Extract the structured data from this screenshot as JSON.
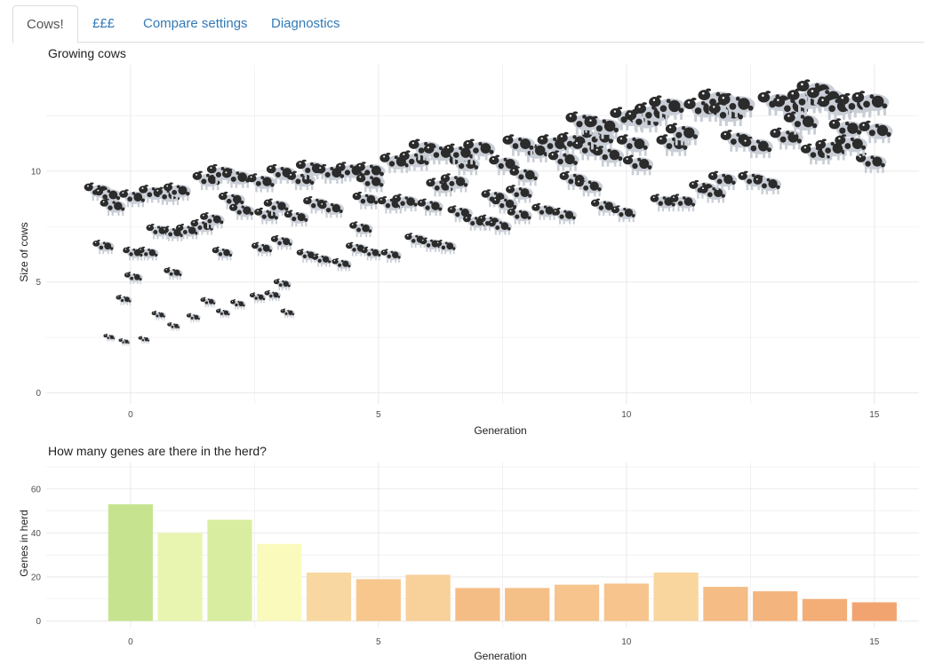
{
  "tabs": [
    {
      "label": "Cows!",
      "active": true
    },
    {
      "label": "£££",
      "active": false
    },
    {
      "label": "Compare settings",
      "active": false
    },
    {
      "label": "Diagnostics",
      "active": false
    }
  ],
  "colors": {
    "tab_link": "#337ab7",
    "grid": "#ebebeb",
    "cow_dark": "#2b2b2b",
    "cow_light": "#c9ced6"
  },
  "chart_data": [
    {
      "type": "scatter",
      "title": "Growing cows",
      "xlabel": "Generation",
      "ylabel": "Size of cows",
      "xlim": [
        -1.7,
        15.9
      ],
      "ylim": [
        -0.5,
        14.8
      ],
      "xticks": [
        0,
        5,
        10,
        15
      ],
      "yticks": [
        0,
        5,
        10
      ],
      "grid": true,
      "marker": "cow-icon",
      "points": [
        {
          "x": -0.6,
          "y": 9.1
        },
        {
          "x": -0.4,
          "y": 8.9
        },
        {
          "x": -0.3,
          "y": 8.4
        },
        {
          "x": 0.1,
          "y": 8.8
        },
        {
          "x": 0.5,
          "y": 9.0
        },
        {
          "x": 0.8,
          "y": 8.9
        },
        {
          "x": 1.0,
          "y": 9.1
        },
        {
          "x": -0.5,
          "y": 6.6
        },
        {
          "x": -0.4,
          "y": 2.5
        },
        {
          "x": -0.1,
          "y": 2.3
        },
        {
          "x": 0.3,
          "y": 2.4
        },
        {
          "x": -0.1,
          "y": 4.2
        },
        {
          "x": 0.1,
          "y": 5.2
        },
        {
          "x": 0.1,
          "y": 6.3
        },
        {
          "x": 0.4,
          "y": 6.3
        },
        {
          "x": 0.6,
          "y": 7.3
        },
        {
          "x": 0.9,
          "y": 7.2
        },
        {
          "x": 0.9,
          "y": 5.4
        },
        {
          "x": 0.6,
          "y": 3.5
        },
        {
          "x": 0.9,
          "y": 3.0
        },
        {
          "x": 1.3,
          "y": 3.4
        },
        {
          "x": 1.2,
          "y": 7.3
        },
        {
          "x": 1.5,
          "y": 7.5
        },
        {
          "x": 1.7,
          "y": 7.8
        },
        {
          "x": 1.6,
          "y": 9.6
        },
        {
          "x": 1.9,
          "y": 9.9
        },
        {
          "x": 2.2,
          "y": 9.7
        },
        {
          "x": 2.1,
          "y": 8.7
        },
        {
          "x": 2.3,
          "y": 8.2
        },
        {
          "x": 1.9,
          "y": 6.3
        },
        {
          "x": 1.6,
          "y": 4.1
        },
        {
          "x": 1.9,
          "y": 3.6
        },
        {
          "x": 2.2,
          "y": 4.0
        },
        {
          "x": 2.6,
          "y": 4.3
        },
        {
          "x": 2.9,
          "y": 4.4
        },
        {
          "x": 3.1,
          "y": 4.9
        },
        {
          "x": 3.2,
          "y": 3.6
        },
        {
          "x": 2.7,
          "y": 6.5
        },
        {
          "x": 3.1,
          "y": 6.8
        },
        {
          "x": 2.8,
          "y": 8.0
        },
        {
          "x": 3.0,
          "y": 8.4
        },
        {
          "x": 2.7,
          "y": 9.5
        },
        {
          "x": 3.1,
          "y": 9.9
        },
        {
          "x": 3.5,
          "y": 9.6
        },
        {
          "x": 3.4,
          "y": 7.9
        },
        {
          "x": 3.7,
          "y": 10.1
        },
        {
          "x": 4.1,
          "y": 9.9
        },
        {
          "x": 3.6,
          "y": 6.2
        },
        {
          "x": 3.9,
          "y": 6.0
        },
        {
          "x": 4.3,
          "y": 5.8
        },
        {
          "x": 3.8,
          "y": 8.5
        },
        {
          "x": 4.1,
          "y": 8.3
        },
        {
          "x": 4.5,
          "y": 10.0
        },
        {
          "x": 4.9,
          "y": 10.0
        },
        {
          "x": 4.9,
          "y": 9.5
        },
        {
          "x": 4.8,
          "y": 8.7
        },
        {
          "x": 4.7,
          "y": 7.4
        },
        {
          "x": 4.6,
          "y": 6.5
        },
        {
          "x": 4.9,
          "y": 6.3
        },
        {
          "x": 5.3,
          "y": 6.2
        },
        {
          "x": 5.3,
          "y": 8.5
        },
        {
          "x": 5.6,
          "y": 8.6
        },
        {
          "x": 5.4,
          "y": 10.4
        },
        {
          "x": 5.8,
          "y": 10.5
        },
        {
          "x": 6.0,
          "y": 11.0
        },
        {
          "x": 6.3,
          "y": 10.8
        },
        {
          "x": 5.8,
          "y": 6.9
        },
        {
          "x": 6.1,
          "y": 6.7
        },
        {
          "x": 6.4,
          "y": 6.6
        },
        {
          "x": 6.1,
          "y": 8.4
        },
        {
          "x": 6.3,
          "y": 9.3
        },
        {
          "x": 6.6,
          "y": 9.5
        },
        {
          "x": 6.7,
          "y": 8.1
        },
        {
          "x": 6.8,
          "y": 10.3
        },
        {
          "x": 6.7,
          "y": 10.8
        },
        {
          "x": 7.1,
          "y": 11.0
        },
        {
          "x": 7.0,
          "y": 7.7
        },
        {
          "x": 7.3,
          "y": 7.7
        },
        {
          "x": 7.5,
          "y": 7.5
        },
        {
          "x": 7.4,
          "y": 8.8
        },
        {
          "x": 7.6,
          "y": 8.5
        },
        {
          "x": 7.9,
          "y": 9.0
        },
        {
          "x": 7.6,
          "y": 10.3
        },
        {
          "x": 8.0,
          "y": 9.8
        },
        {
          "x": 8.2,
          "y": 10.9
        },
        {
          "x": 7.9,
          "y": 11.2
        },
        {
          "x": 7.9,
          "y": 8.0
        },
        {
          "x": 8.4,
          "y": 8.2
        },
        {
          "x": 8.8,
          "y": 8.0
        },
        {
          "x": 8.6,
          "y": 11.2
        },
        {
          "x": 9.0,
          "y": 11.3
        },
        {
          "x": 8.8,
          "y": 10.5
        },
        {
          "x": 9.0,
          "y": 9.6
        },
        {
          "x": 9.3,
          "y": 9.3
        },
        {
          "x": 9.3,
          "y": 11.0
        },
        {
          "x": 9.5,
          "y": 11.5
        },
        {
          "x": 9.2,
          "y": 12.2
        },
        {
          "x": 9.6,
          "y": 12.0
        },
        {
          "x": 9.7,
          "y": 10.7
        },
        {
          "x": 9.6,
          "y": 8.4
        },
        {
          "x": 10.0,
          "y": 8.1
        },
        {
          "x": 10.1,
          "y": 12.4
        },
        {
          "x": 10.4,
          "y": 12.3
        },
        {
          "x": 10.2,
          "y": 11.2
        },
        {
          "x": 10.3,
          "y": 10.3
        },
        {
          "x": 10.8,
          "y": 8.6
        },
        {
          "x": 11.2,
          "y": 8.6
        },
        {
          "x": 10.6,
          "y": 12.6
        },
        {
          "x": 10.9,
          "y": 12.9
        },
        {
          "x": 11.0,
          "y": 11.2
        },
        {
          "x": 11.2,
          "y": 11.7
        },
        {
          "x": 11.6,
          "y": 12.8
        },
        {
          "x": 11.9,
          "y": 13.2
        },
        {
          "x": 12.1,
          "y": 12.6
        },
        {
          "x": 11.6,
          "y": 9.2
        },
        {
          "x": 11.8,
          "y": 9.0
        },
        {
          "x": 12.0,
          "y": 9.6
        },
        {
          "x": 12.3,
          "y": 13.0
        },
        {
          "x": 12.3,
          "y": 11.4
        },
        {
          "x": 12.7,
          "y": 11.1
        },
        {
          "x": 12.6,
          "y": 9.6
        },
        {
          "x": 12.9,
          "y": 9.4
        },
        {
          "x": 13.1,
          "y": 13.1
        },
        {
          "x": 13.4,
          "y": 12.9
        },
        {
          "x": 13.3,
          "y": 11.5
        },
        {
          "x": 13.6,
          "y": 12.2
        },
        {
          "x": 13.7,
          "y": 13.2
        },
        {
          "x": 13.9,
          "y": 13.6
        },
        {
          "x": 14.1,
          "y": 13.3
        },
        {
          "x": 13.9,
          "y": 10.8
        },
        {
          "x": 14.2,
          "y": 11.0
        },
        {
          "x": 14.5,
          "y": 11.9
        },
        {
          "x": 14.3,
          "y": 12.9
        },
        {
          "x": 14.7,
          "y": 13.0
        },
        {
          "x": 15.0,
          "y": 13.1
        },
        {
          "x": 15.0,
          "y": 10.4
        },
        {
          "x": 15.1,
          "y": 11.8
        },
        {
          "x": 14.6,
          "y": 11.2
        }
      ]
    },
    {
      "type": "bar",
      "title": "How many genes are there in the herd?",
      "xlabel": "Generation",
      "ylabel": "Genes in herd",
      "x": [
        0,
        1,
        2,
        3,
        4,
        5,
        6,
        7,
        8,
        9,
        10,
        11,
        12,
        13,
        14,
        15
      ],
      "values": [
        53,
        40,
        46,
        35,
        22,
        19,
        21,
        15,
        15,
        16.5,
        17,
        22,
        15.5,
        13.5,
        10,
        8.5
      ],
      "colors": [
        "#c6e48f",
        "#e8f5b0",
        "#d9eda0",
        "#fafabd",
        "#f8d8a0",
        "#f7c78e",
        "#f8d09a",
        "#f5bd86",
        "#f5bf88",
        "#f6c48c",
        "#f6c48c",
        "#f8d69e",
        "#f5bc85",
        "#f4b47e",
        "#f3ad77",
        "#f2a470"
      ],
      "xlim": [
        -1.7,
        15.9
      ],
      "ylim": [
        -3,
        72
      ],
      "xticks": [
        0,
        5,
        10,
        15
      ],
      "yticks": [
        0,
        20,
        40,
        60
      ],
      "grid": true
    }
  ]
}
